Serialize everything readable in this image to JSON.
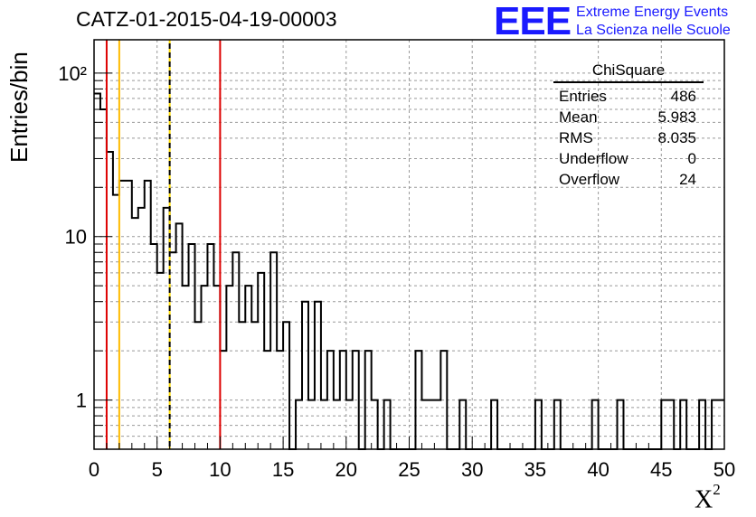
{
  "title": "CATZ-01-2015-04-19-00003",
  "logo": {
    "mark": "EEE",
    "line1": "Extreme Energy Events",
    "line2": "La Scienza nelle Scuole"
  },
  "stats_box": {
    "name": "ChiSquare",
    "rows": [
      {
        "label": "Entries",
        "value": "486"
      },
      {
        "label": "Mean",
        "value": "5.983"
      },
      {
        "label": "RMS",
        "value": "8.035"
      },
      {
        "label": "Underflow",
        "value": "0"
      },
      {
        "label": "Overflow",
        "value": "24"
      }
    ]
  },
  "colors": {
    "histogram": "#000000",
    "red_lines": "#dd0000",
    "orange_line": "#ffbb00",
    "dashed_line": "#ffdd00",
    "grid": "#999999",
    "logo": "#1a1aff"
  },
  "chart_data": {
    "type": "histogram",
    "title": "CATZ-01-2015-04-19-00003",
    "xlabel": "X²",
    "ylabel": "Entries/bin",
    "xlim": [
      0,
      50
    ],
    "ylim": [
      0.5,
      160
    ],
    "yscale": "log",
    "grid": true,
    "bin_width": 1,
    "x_ticks": [
      0,
      5,
      10,
      15,
      20,
      25,
      30,
      35,
      40,
      45,
      50
    ],
    "y_tick_labels": [
      "1",
      "10",
      "10²"
    ],
    "bins": [
      {
        "x": 0,
        "y": 75
      },
      {
        "x": 0.5,
        "y": 60
      },
      {
        "x": 1,
        "y": 33
      },
      {
        "x": 1.5,
        "y": 18
      },
      {
        "x": 2,
        "y": 22
      },
      {
        "x": 2.5,
        "y": 22
      },
      {
        "x": 3,
        "y": 13
      },
      {
        "x": 3.5,
        "y": 15
      },
      {
        "x": 4,
        "y": 22
      },
      {
        "x": 4.5,
        "y": 9
      },
      {
        "x": 5,
        "y": 6
      },
      {
        "x": 5.5,
        "y": 15
      },
      {
        "x": 6,
        "y": 8
      },
      {
        "x": 6.5,
        "y": 12
      },
      {
        "x": 7,
        "y": 5
      },
      {
        "x": 7.5,
        "y": 9
      },
      {
        "x": 8,
        "y": 3
      },
      {
        "x": 8.5,
        "y": 5
      },
      {
        "x": 9,
        "y": 9
      },
      {
        "x": 9.5,
        "y": 5
      },
      {
        "x": 10,
        "y": 2
      },
      {
        "x": 10.5,
        "y": 5
      },
      {
        "x": 11,
        "y": 8
      },
      {
        "x": 11.5,
        "y": 3
      },
      {
        "x": 12,
        "y": 5
      },
      {
        "x": 12.5,
        "y": 3
      },
      {
        "x": 13,
        "y": 6
      },
      {
        "x": 13.5,
        "y": 2
      },
      {
        "x": 14,
        "y": 8
      },
      {
        "x": 14.5,
        "y": 2
      },
      {
        "x": 15,
        "y": 3
      },
      {
        "x": 15.5,
        "y": 0.5
      },
      {
        "x": 16,
        "y": 1
      },
      {
        "x": 16.5,
        "y": 4
      },
      {
        "x": 17,
        "y": 1
      },
      {
        "x": 17.5,
        "y": 4
      },
      {
        "x": 18,
        "y": 1
      },
      {
        "x": 18.5,
        "y": 2
      },
      {
        "x": 19,
        "y": 1
      },
      {
        "x": 19.5,
        "y": 2
      },
      {
        "x": 20,
        "y": 1
      },
      {
        "x": 20.5,
        "y": 2
      },
      {
        "x": 21,
        "y": 0.5
      },
      {
        "x": 21.5,
        "y": 2
      },
      {
        "x": 22,
        "y": 1
      },
      {
        "x": 22.5,
        "y": 0.5
      },
      {
        "x": 23,
        "y": 1
      },
      {
        "x": 23.5,
        "y": 0.5
      },
      {
        "x": 24,
        "y": 0.5
      },
      {
        "x": 24.5,
        "y": 0.5
      },
      {
        "x": 25,
        "y": 0.5
      },
      {
        "x": 25.5,
        "y": 2
      },
      {
        "x": 26,
        "y": 1
      },
      {
        "x": 26.5,
        "y": 1
      },
      {
        "x": 27,
        "y": 1
      },
      {
        "x": 27.5,
        "y": 2
      },
      {
        "x": 28,
        "y": 0.5
      },
      {
        "x": 28.5,
        "y": 0.5
      },
      {
        "x": 29,
        "y": 1
      },
      {
        "x": 29.5,
        "y": 0.5
      },
      {
        "x": 30,
        "y": 0.5
      },
      {
        "x": 30.5,
        "y": 0.5
      },
      {
        "x": 31,
        "y": 0.5
      },
      {
        "x": 31.5,
        "y": 1
      },
      {
        "x": 32,
        "y": 0.5
      },
      {
        "x": 32.5,
        "y": 0.5
      },
      {
        "x": 33,
        "y": 0.5
      },
      {
        "x": 33.5,
        "y": 0.5
      },
      {
        "x": 34,
        "y": 0.5
      },
      {
        "x": 34.5,
        "y": 0.5
      },
      {
        "x": 35,
        "y": 1
      },
      {
        "x": 35.5,
        "y": 0.5
      },
      {
        "x": 36,
        "y": 0.5
      },
      {
        "x": 36.5,
        "y": 1
      },
      {
        "x": 37,
        "y": 0.5
      },
      {
        "x": 37.5,
        "y": 0.5
      },
      {
        "x": 38,
        "y": 0.5
      },
      {
        "x": 38.5,
        "y": 0.5
      },
      {
        "x": 39,
        "y": 0.5
      },
      {
        "x": 39.5,
        "y": 1
      },
      {
        "x": 40,
        "y": 0.5
      },
      {
        "x": 40.5,
        "y": 0.5
      },
      {
        "x": 41,
        "y": 0.5
      },
      {
        "x": 41.5,
        "y": 1
      },
      {
        "x": 42,
        "y": 0.5
      },
      {
        "x": 42.5,
        "y": 0.5
      },
      {
        "x": 43,
        "y": 0.5
      },
      {
        "x": 43.5,
        "y": 0.5
      },
      {
        "x": 44,
        "y": 0.5
      },
      {
        "x": 44.5,
        "y": 0.5
      },
      {
        "x": 45,
        "y": 1
      },
      {
        "x": 45.5,
        "y": 1
      },
      {
        "x": 46,
        "y": 0.5
      },
      {
        "x": 46.5,
        "y": 1
      },
      {
        "x": 47,
        "y": 0.5
      },
      {
        "x": 47.5,
        "y": 0.5
      },
      {
        "x": 48,
        "y": 1
      },
      {
        "x": 48.5,
        "y": 0.5
      },
      {
        "x": 49,
        "y": 1
      },
      {
        "x": 49.5,
        "y": 1
      }
    ],
    "reference_lines": [
      {
        "x": 1,
        "color": "red",
        "style": "solid"
      },
      {
        "x": 2,
        "color": "orange",
        "style": "solid"
      },
      {
        "x": 6,
        "color": "yellow",
        "style": "dashed"
      },
      {
        "x": 10,
        "color": "red",
        "style": "solid"
      }
    ]
  }
}
